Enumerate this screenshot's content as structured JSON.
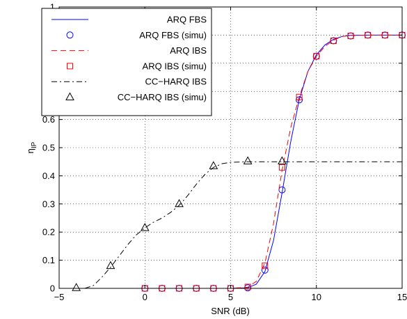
{
  "chart_data": {
    "type": "line",
    "xlabel": "SNR (dB)",
    "ylabel_main": "η",
    "ylabel_sub": "IP",
    "xlim": [
      -5,
      15
    ],
    "ylim": [
      0,
      1
    ],
    "xticks": [
      -5,
      0,
      5,
      10,
      15
    ],
    "xtick_labels": [
      "−5",
      "0",
      "5",
      "10",
      "15"
    ],
    "yticks": [
      0,
      0.1,
      0.2,
      0.3,
      0.4,
      0.5,
      0.6,
      0.7,
      0.8,
      0.9,
      1
    ],
    "ytick_labels": [
      "0",
      "0.1",
      "0.2",
      "0.3",
      "0.4",
      "0.5",
      "0.6",
      "0.7",
      "0.8",
      "0.9",
      "1"
    ],
    "grid": true,
    "legend_position": "top-left",
    "series": [
      {
        "name": "ARQ FBS",
        "style": "solid-line",
        "color": "#0000ff",
        "x": [
          0,
          5,
          6,
          6.5,
          7,
          7.5,
          8,
          8.5,
          9,
          9.5,
          10,
          10.5,
          11,
          11.5,
          12,
          13,
          14,
          15
        ],
        "y": [
          0,
          0,
          0.002,
          0.015,
          0.06,
          0.17,
          0.34,
          0.52,
          0.67,
          0.77,
          0.83,
          0.865,
          0.885,
          0.895,
          0.899,
          0.9,
          0.9,
          0.9
        ]
      },
      {
        "name": "ARQ FBS (simu)",
        "style": "circle-marker",
        "color": "#0000ff",
        "x": [
          0,
          1,
          2,
          3,
          4,
          5,
          6,
          7,
          8,
          9,
          10,
          11,
          12,
          13,
          14,
          15
        ],
        "y": [
          0,
          0,
          0,
          0,
          0,
          0,
          0.002,
          0.065,
          0.35,
          0.67,
          0.825,
          0.88,
          0.897,
          0.9,
          0.9,
          0.9
        ]
      },
      {
        "name": "ARQ IBS",
        "style": "dashed-line",
        "color": "#ff0000",
        "x": [
          0,
          5,
          6,
          6.5,
          7,
          7.5,
          8,
          8.5,
          9,
          9.5,
          10,
          10.5,
          11,
          11.5,
          12,
          13,
          14,
          15
        ],
        "y": [
          0,
          0,
          0.004,
          0.025,
          0.09,
          0.23,
          0.42,
          0.57,
          0.68,
          0.77,
          0.825,
          0.86,
          0.882,
          0.895,
          0.899,
          0.9,
          0.9,
          0.9
        ]
      },
      {
        "name": "ARQ IBS (simu)",
        "style": "square-marker",
        "color": "#ff0000",
        "x": [
          0,
          1,
          2,
          3,
          4,
          5,
          6,
          7,
          8,
          9,
          10,
          11,
          12,
          13,
          14,
          15
        ],
        "y": [
          0,
          0,
          0,
          0,
          0,
          0,
          0.005,
          0.08,
          0.43,
          0.68,
          0.825,
          0.88,
          0.897,
          0.9,
          0.9,
          0.9
        ]
      },
      {
        "name": "CC−HARQ IBS",
        "style": "dashdot-line",
        "color": "#000000",
        "x": [
          -3.5,
          -3,
          -2.5,
          -2,
          -1.5,
          -1,
          -0.5,
          0,
          0.5,
          1,
          1.5,
          2,
          2.5,
          3,
          3.5,
          4,
          4.5,
          5,
          6,
          7,
          8,
          9,
          10,
          12,
          15
        ],
        "y": [
          0,
          0.01,
          0.04,
          0.075,
          0.115,
          0.155,
          0.19,
          0.215,
          0.235,
          0.25,
          0.27,
          0.295,
          0.33,
          0.37,
          0.405,
          0.43,
          0.443,
          0.448,
          0.45,
          0.45,
          0.45,
          0.45,
          0.45,
          0.45,
          0.45
        ]
      },
      {
        "name": "CC−HARQ IBS (simu)",
        "style": "triangle-marker",
        "color": "#000000",
        "x": [
          -4,
          -2,
          0,
          2,
          4,
          6,
          8
        ],
        "y": [
          0.002,
          0.08,
          0.215,
          0.3,
          0.435,
          0.452,
          0.452
        ]
      }
    ]
  }
}
